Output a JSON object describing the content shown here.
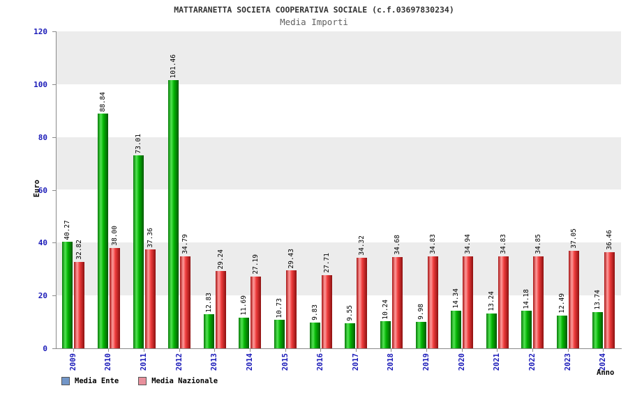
{
  "chart_data": {
    "type": "bar",
    "title": "MATTARANETTA SOCIETA COOPERATIVA SOCIALE (c.f.03697830234)",
    "subtitle": "Media Importi",
    "xlabel": "Anno",
    "ylabel": "Euro",
    "ylim": [
      0,
      120
    ],
    "yticks": [
      0,
      20,
      40,
      60,
      80,
      100,
      120
    ],
    "grid_on": false,
    "legend_position": "bottom-left",
    "categories": [
      "2009",
      "2010",
      "2011",
      "2012",
      "2013",
      "2014",
      "2015",
      "2016",
      "2017",
      "2018",
      "2019",
      "2020",
      "2021",
      "2022",
      "2023",
      "2024"
    ],
    "series": [
      {
        "name": "Media Ente",
        "values": [
          40.27,
          88.84,
          73.01,
          101.46,
          12.83,
          11.69,
          10.73,
          9.83,
          9.55,
          10.24,
          9.98,
          14.34,
          13.24,
          14.18,
          12.49,
          13.74
        ],
        "bar_gradient": [
          "#067a06",
          "#52e452",
          "#04b404",
          "#045804"
        ],
        "legend_color": "#7296c8"
      },
      {
        "name": "Media Nazionale",
        "values": [
          32.82,
          38.0,
          37.36,
          34.79,
          29.24,
          27.19,
          29.43,
          27.71,
          34.32,
          34.68,
          34.83,
          34.94,
          34.83,
          34.85,
          37.05,
          36.46
        ],
        "bar_gradient": [
          "#a81414",
          "#ff9c9c",
          "#ee3c3c",
          "#8c1010"
        ],
        "legend_color": "#e8909c"
      }
    ],
    "value_label_decimals": 2,
    "band_colors": [
      "#ffffff",
      "#ececec"
    ],
    "axis_text_color": "#1a1ab8",
    "axis_line_color": "#8a8a8a"
  }
}
